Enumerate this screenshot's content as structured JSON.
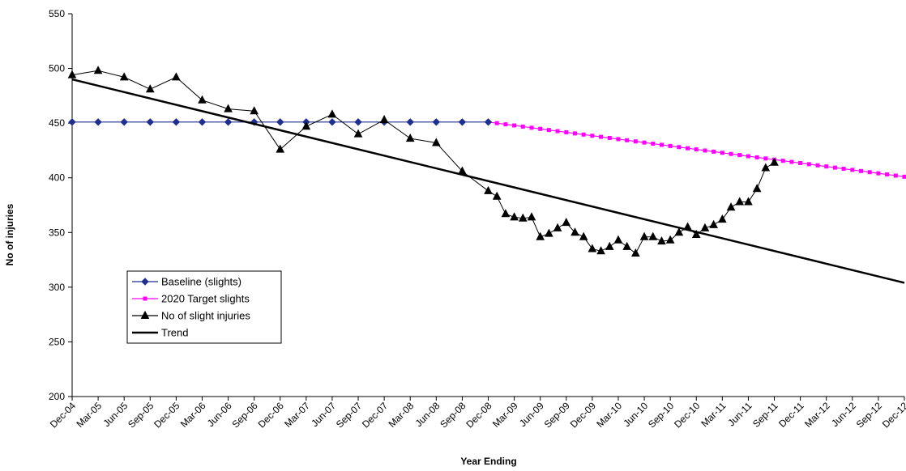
{
  "chart_data": {
    "type": "line",
    "xlabel": "Year Ending",
    "ylabel": "No of injuries",
    "ylim": [
      200,
      550
    ],
    "yticks": [
      "200",
      "250",
      "300",
      "350",
      "400",
      "450",
      "500",
      "550"
    ],
    "x_month_range": [
      "Dec-04",
      "Dec-12"
    ],
    "x_tick_labels": [
      "Dec-04",
      "Mar-05",
      "Jun-05",
      "Sep-05",
      "Dec-05",
      "Mar-06",
      "Jun-06",
      "Sep-06",
      "Dec-06",
      "Mar-07",
      "Jun-07",
      "Sep-07",
      "Dec-07",
      "Mar-08",
      "Jun-08",
      "Sep-08",
      "Dec-08",
      "Mar-09",
      "Jun-09",
      "Sep-09",
      "Dec-09",
      "Mar-10",
      "Jun-10",
      "Sep-10",
      "Dec-10",
      "Mar-11",
      "Jun-11",
      "Sep-11",
      "Dec-11",
      "Mar-12",
      "Jun-12",
      "Sep-12",
      "Dec-12"
    ],
    "grid": false,
    "legend_position": "left",
    "series": [
      {
        "name": "Baseline (slights)",
        "color": "#1f2f8f",
        "marker": "diamond",
        "points": [
          [
            "Dec-04",
            451
          ],
          [
            "Mar-05",
            451
          ],
          [
            "Jun-05",
            451
          ],
          [
            "Sep-05",
            451
          ],
          [
            "Dec-05",
            451
          ],
          [
            "Mar-06",
            451
          ],
          [
            "Jun-06",
            451
          ],
          [
            "Sep-06",
            451
          ],
          [
            "Dec-06",
            451
          ],
          [
            "Mar-07",
            451
          ],
          [
            "Jun-07",
            451
          ],
          [
            "Sep-07",
            451
          ],
          [
            "Dec-07",
            451
          ],
          [
            "Mar-08",
            451
          ],
          [
            "Jun-08",
            451
          ],
          [
            "Sep-08",
            451
          ],
          [
            "Dec-08",
            451
          ]
        ]
      },
      {
        "name": "2020 Target slights",
        "color": "#ff00ff",
        "marker": "square",
        "monthly_linear": {
          "start": "Dec-08",
          "end": "Dec-12",
          "start_value": 451,
          "end_value": 401
        }
      },
      {
        "name": "No of slight injuries",
        "color": "#000000",
        "marker": "triangle",
        "points": [
          [
            "Dec-04",
            494
          ],
          [
            "Mar-05",
            498
          ],
          [
            "Jun-05",
            492
          ],
          [
            "Sep-05",
            481
          ],
          [
            "Dec-05",
            492
          ],
          [
            "Mar-06",
            471
          ],
          [
            "Jun-06",
            463
          ],
          [
            "Sep-06",
            461
          ],
          [
            "Dec-06",
            426
          ],
          [
            "Mar-07",
            447
          ],
          [
            "Jun-07",
            458
          ],
          [
            "Sep-07",
            440
          ],
          [
            "Dec-07",
            453
          ],
          [
            "Mar-08",
            436
          ],
          [
            "Jun-08",
            432
          ],
          [
            "Sep-08",
            406
          ],
          [
            "Dec-08",
            388
          ],
          [
            "Jan-09",
            383
          ],
          [
            "Feb-09",
            367
          ],
          [
            "Mar-09",
            364
          ],
          [
            "Apr-09",
            363
          ],
          [
            "May-09",
            364
          ],
          [
            "Jun-09",
            346
          ],
          [
            "Jul-09",
            349
          ],
          [
            "Aug-09",
            354
          ],
          [
            "Sep-09",
            359
          ],
          [
            "Oct-09",
            350
          ],
          [
            "Nov-09",
            346
          ],
          [
            "Dec-09",
            335
          ],
          [
            "Jan-10",
            333
          ],
          [
            "Feb-10",
            337
          ],
          [
            "Mar-10",
            343
          ],
          [
            "Apr-10",
            337
          ],
          [
            "May-10",
            331
          ],
          [
            "Jun-10",
            346
          ],
          [
            "Jul-10",
            346
          ],
          [
            "Aug-10",
            342
          ],
          [
            "Sep-10",
            343
          ],
          [
            "Oct-10",
            350
          ],
          [
            "Nov-10",
            355
          ],
          [
            "Dec-10",
            348
          ],
          [
            "Jan-11",
            354
          ],
          [
            "Feb-11",
            357
          ],
          [
            "Mar-11",
            362
          ],
          [
            "Apr-11",
            373
          ],
          [
            "May-11",
            378
          ],
          [
            "Jun-11",
            378
          ],
          [
            "Jul-11",
            390
          ],
          [
            "Aug-11",
            409
          ],
          [
            "Sep-11",
            414
          ]
        ]
      },
      {
        "name": "Trend",
        "color": "#000000",
        "marker": "none",
        "points": [
          [
            "Dec-04",
            490
          ],
          [
            "Dec-12",
            304
          ]
        ]
      }
    ]
  }
}
